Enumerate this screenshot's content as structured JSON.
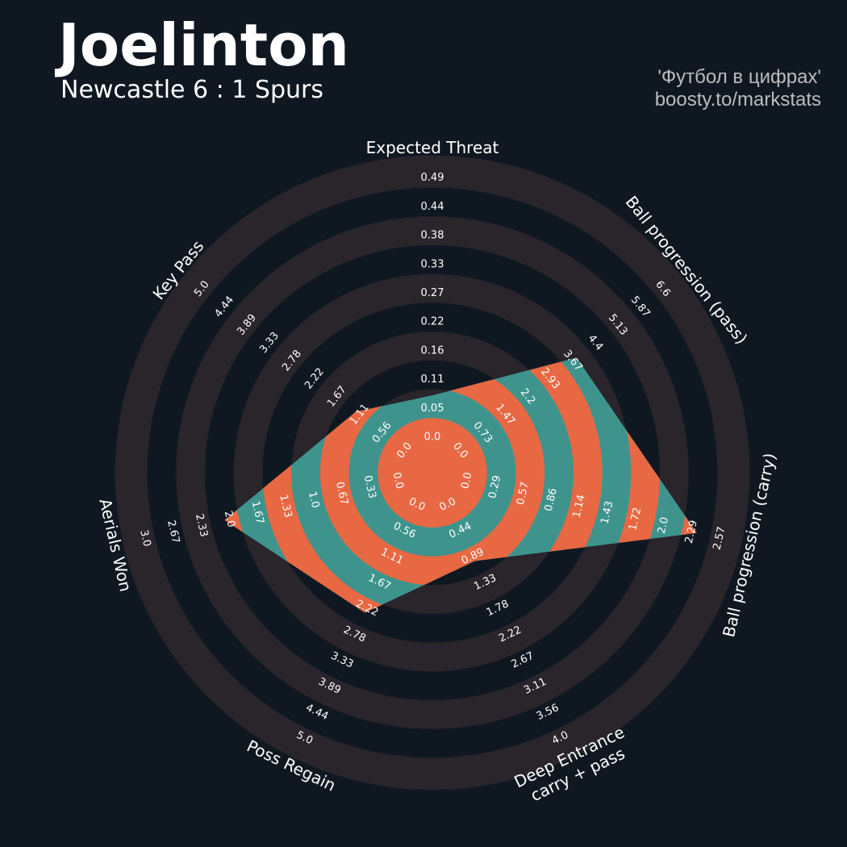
{
  "header": {
    "title": "Joelinton",
    "subtitle": "Newcastle 6 : 1 Spurs",
    "credit_line1": "'Футбол в цифрах'",
    "credit_line2": "boosty.to/markstats"
  },
  "colors": {
    "background": "#0f1820",
    "ring_band": "#29252b",
    "player_fill": "#3e948d",
    "highlight_ring": "#e76843",
    "text": "#ffffff",
    "credit_text": "#b9bcc0"
  },
  "chart_data": {
    "type": "radar",
    "title": "Joelinton",
    "subtitle": "Newcastle 6 : 1 Spurs",
    "ring_count": 10,
    "axes": [
      {
        "label": "Expected Threat",
        "min": 0.0,
        "max": 0.49,
        "value": 0.07,
        "tick_labels": [
          "0.0",
          "0.05",
          "0.11",
          "0.16",
          "0.22",
          "0.27",
          "0.33",
          "0.38",
          "0.44",
          "0.49"
        ]
      },
      {
        "label": "Ball progression (pass)",
        "min": 0.0,
        "max": 6.6,
        "value": 3.67,
        "tick_labels": [
          "0.0",
          "0.73",
          "1.47",
          "2.2",
          "2.93",
          "3.67",
          "4.4",
          "5.13",
          "5.87",
          "6.6"
        ]
      },
      {
        "label": "Ball progression (carry)",
        "min": 0.0,
        "max": 2.57,
        "value": 2.29,
        "tick_labels": [
          "0.0",
          "0.29",
          "0.57",
          "0.86",
          "1.14",
          "1.43",
          "1.72",
          "2.0",
          "2.29",
          "2.57"
        ]
      },
      {
        "label": "Deep Entrance\ncarry + pass",
        "min": 0.0,
        "max": 4.0,
        "value": 0.89,
        "tick_labels": [
          "0.0",
          "0.44",
          "0.89",
          "1.33",
          "1.78",
          "2.22",
          "2.67",
          "3.11",
          "3.56",
          "4.0"
        ]
      },
      {
        "label": "Poss Regain",
        "min": 0.0,
        "max": 5.0,
        "value": 2.22,
        "tick_labels": [
          "0.0",
          "0.56",
          "1.11",
          "1.67",
          "2.22",
          "2.78",
          "3.33",
          "3.89",
          "4.44",
          "5.0"
        ]
      },
      {
        "label": "Aerials Won",
        "min": 0.0,
        "max": 3.0,
        "value": 2.0,
        "tick_labels": [
          "0.0",
          "0.33",
          "0.67",
          "1.0",
          "1.33",
          "1.67",
          "2.0",
          "2.33",
          "2.67",
          "3.0"
        ]
      },
      {
        "label": "Key Pass",
        "min": 0.0,
        "max": 5.0,
        "value": 1.11,
        "tick_labels": [
          "0.0",
          "0.56",
          "1.11",
          "1.67",
          "2.22",
          "2.78",
          "3.33",
          "3.89",
          "4.44",
          "5.0"
        ]
      }
    ],
    "grid": true,
    "legend": "none"
  }
}
